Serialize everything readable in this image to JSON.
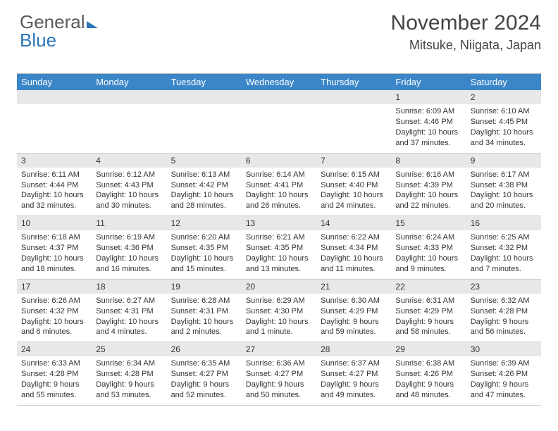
{
  "logo": {
    "part1": "General",
    "part2": "Blue"
  },
  "title": "November 2024",
  "location": "Mitsuke, Niigata, Japan",
  "weekdays": [
    "Sunday",
    "Monday",
    "Tuesday",
    "Wednesday",
    "Thursday",
    "Friday",
    "Saturday"
  ],
  "colors": {
    "header_bg": "#3a86c8",
    "daynum_bg": "#e8e8e8",
    "text": "#333333"
  },
  "weeks": [
    [
      null,
      null,
      null,
      null,
      null,
      {
        "n": "1",
        "sr": "6:09 AM",
        "ss": "4:46 PM",
        "dl": "10 hours and 37 minutes."
      },
      {
        "n": "2",
        "sr": "6:10 AM",
        "ss": "4:45 PM",
        "dl": "10 hours and 34 minutes."
      }
    ],
    [
      {
        "n": "3",
        "sr": "6:11 AM",
        "ss": "4:44 PM",
        "dl": "10 hours and 32 minutes."
      },
      {
        "n": "4",
        "sr": "6:12 AM",
        "ss": "4:43 PM",
        "dl": "10 hours and 30 minutes."
      },
      {
        "n": "5",
        "sr": "6:13 AM",
        "ss": "4:42 PM",
        "dl": "10 hours and 28 minutes."
      },
      {
        "n": "6",
        "sr": "6:14 AM",
        "ss": "4:41 PM",
        "dl": "10 hours and 26 minutes."
      },
      {
        "n": "7",
        "sr": "6:15 AM",
        "ss": "4:40 PM",
        "dl": "10 hours and 24 minutes."
      },
      {
        "n": "8",
        "sr": "6:16 AM",
        "ss": "4:39 PM",
        "dl": "10 hours and 22 minutes."
      },
      {
        "n": "9",
        "sr": "6:17 AM",
        "ss": "4:38 PM",
        "dl": "10 hours and 20 minutes."
      }
    ],
    [
      {
        "n": "10",
        "sr": "6:18 AM",
        "ss": "4:37 PM",
        "dl": "10 hours and 18 minutes."
      },
      {
        "n": "11",
        "sr": "6:19 AM",
        "ss": "4:36 PM",
        "dl": "10 hours and 16 minutes."
      },
      {
        "n": "12",
        "sr": "6:20 AM",
        "ss": "4:35 PM",
        "dl": "10 hours and 15 minutes."
      },
      {
        "n": "13",
        "sr": "6:21 AM",
        "ss": "4:35 PM",
        "dl": "10 hours and 13 minutes."
      },
      {
        "n": "14",
        "sr": "6:22 AM",
        "ss": "4:34 PM",
        "dl": "10 hours and 11 minutes."
      },
      {
        "n": "15",
        "sr": "6:24 AM",
        "ss": "4:33 PM",
        "dl": "10 hours and 9 minutes."
      },
      {
        "n": "16",
        "sr": "6:25 AM",
        "ss": "4:32 PM",
        "dl": "10 hours and 7 minutes."
      }
    ],
    [
      {
        "n": "17",
        "sr": "6:26 AM",
        "ss": "4:32 PM",
        "dl": "10 hours and 6 minutes."
      },
      {
        "n": "18",
        "sr": "6:27 AM",
        "ss": "4:31 PM",
        "dl": "10 hours and 4 minutes."
      },
      {
        "n": "19",
        "sr": "6:28 AM",
        "ss": "4:31 PM",
        "dl": "10 hours and 2 minutes."
      },
      {
        "n": "20",
        "sr": "6:29 AM",
        "ss": "4:30 PM",
        "dl": "10 hours and 1 minute."
      },
      {
        "n": "21",
        "sr": "6:30 AM",
        "ss": "4:29 PM",
        "dl": "9 hours and 59 minutes."
      },
      {
        "n": "22",
        "sr": "6:31 AM",
        "ss": "4:29 PM",
        "dl": "9 hours and 58 minutes."
      },
      {
        "n": "23",
        "sr": "6:32 AM",
        "ss": "4:28 PM",
        "dl": "9 hours and 56 minutes."
      }
    ],
    [
      {
        "n": "24",
        "sr": "6:33 AM",
        "ss": "4:28 PM",
        "dl": "9 hours and 55 minutes."
      },
      {
        "n": "25",
        "sr": "6:34 AM",
        "ss": "4:28 PM",
        "dl": "9 hours and 53 minutes."
      },
      {
        "n": "26",
        "sr": "6:35 AM",
        "ss": "4:27 PM",
        "dl": "9 hours and 52 minutes."
      },
      {
        "n": "27",
        "sr": "6:36 AM",
        "ss": "4:27 PM",
        "dl": "9 hours and 50 minutes."
      },
      {
        "n": "28",
        "sr": "6:37 AM",
        "ss": "4:27 PM",
        "dl": "9 hours and 49 minutes."
      },
      {
        "n": "29",
        "sr": "6:38 AM",
        "ss": "4:26 PM",
        "dl": "9 hours and 48 minutes."
      },
      {
        "n": "30",
        "sr": "6:39 AM",
        "ss": "4:26 PM",
        "dl": "9 hours and 47 minutes."
      }
    ]
  ]
}
